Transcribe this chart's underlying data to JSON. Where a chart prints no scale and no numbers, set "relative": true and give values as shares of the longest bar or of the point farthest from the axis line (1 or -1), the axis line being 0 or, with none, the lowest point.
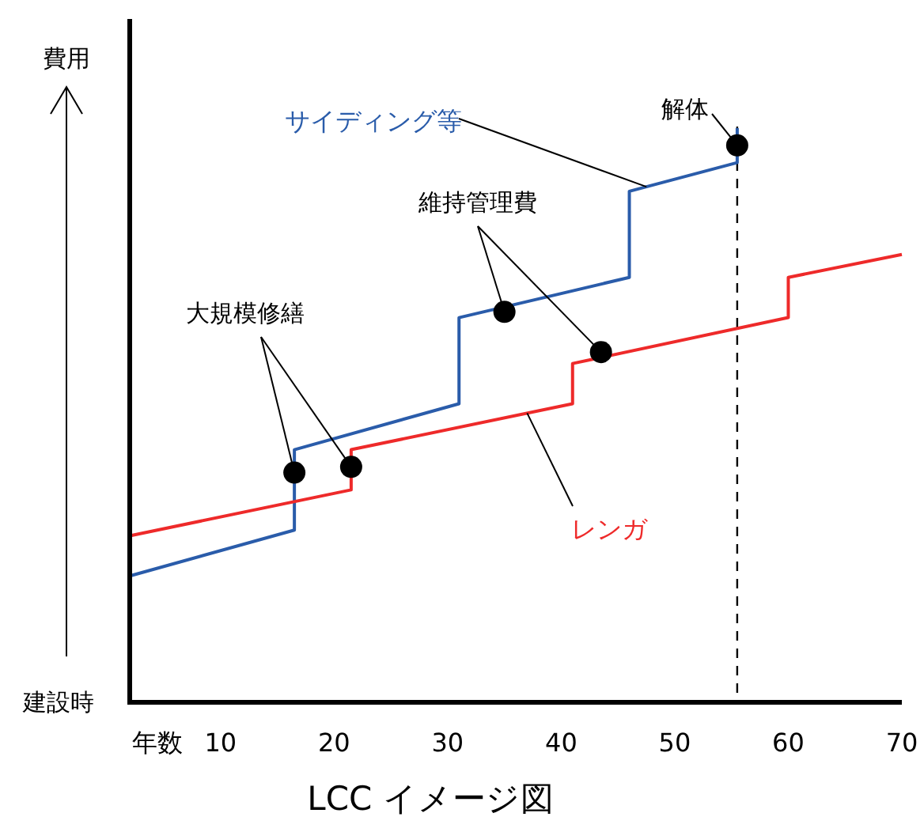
{
  "chart_data": {
    "type": "line",
    "title": "LCC イメージ図",
    "ylabel": "費用",
    "relative": true,
    "annotations": [
      "大規模修繕",
      "維持管理費",
      "解体",
      "建設時"
    ],
    "xlim": [
      2,
      70
    ],
    "xlabel": "年数",
    "xticks": [
      10,
      20,
      30,
      40,
      50,
      60,
      70
    ],
    "series": [
      {
        "name": "サイディング等",
        "color": "#2a5caa",
        "x": [
          2,
          16.5,
          16.5,
          31,
          31,
          46,
          46,
          55.5,
          55.5
        ],
        "values": [
          0.22,
          0.3,
          0.44,
          0.52,
          0.67,
          0.74,
          0.89,
          0.94,
          1.0
        ]
      },
      {
        "name": "レンガ",
        "color": "#ee2a2a",
        "x": [
          2,
          21.5,
          21.5,
          41,
          41,
          60,
          60,
          70
        ],
        "values": [
          0.29,
          0.37,
          0.44,
          0.52,
          0.59,
          0.67,
          0.74,
          0.78
        ]
      },
      {
        "type": "scatter",
        "color": "#000000",
        "marker": "circle",
        "x": [
          16.5,
          21.5,
          35,
          43.5,
          55.5
        ],
        "values": [
          0.4,
          0.41,
          0.68,
          0.61,
          0.97
        ]
      }
    ],
    "ref_lines": [
      {
        "axis": "x",
        "value": 55.5,
        "line_style": "dashed",
        "color": "#000000"
      }
    ],
    "line_style": "solid",
    "marker": "none",
    "grid": false,
    "legend": false
  }
}
